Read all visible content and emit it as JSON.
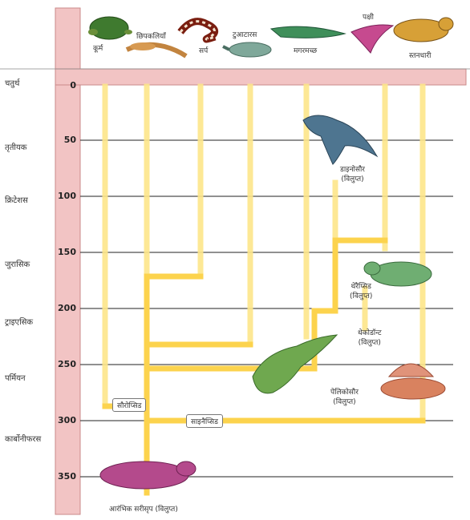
{
  "eras": [
    {
      "id": "quaternary",
      "label": "चतुर्थ",
      "ma": 0
    },
    {
      "id": "tertiary",
      "label": "तृतीयक",
      "ma": 50
    },
    {
      "id": "cretaceous",
      "label": "क्रिटेशस",
      "ma": 100
    },
    {
      "id": "jurassic",
      "label": "जुरासिक",
      "ma": 150
    },
    {
      "id": "triassic",
      "label": "ट्राइएसिक",
      "ma": 200
    },
    {
      "id": "permian",
      "label": "पर्मियन",
      "ma": 250
    },
    {
      "id": "carboniferous",
      "label": "कार्बोनीफरस",
      "ma": 300
    }
  ],
  "ticks": [
    "0",
    "50",
    "100",
    "150",
    "200",
    "250",
    "300",
    "350"
  ],
  "modern_animals": {
    "turtles": "कूर्म",
    "lizards": "छिपकलियाँ",
    "snakes": "सर्प",
    "tuatara": "टुआटारस",
    "crocodiles": "मगरमच्छ",
    "birds": "पक्षी",
    "mammals": "स्तनधारी"
  },
  "extinct_groups": {
    "dinosaurs": {
      "name": "डाइनोसौर",
      "status": "(विलुप्त)"
    },
    "therapsids": {
      "name": "थेरैप्सिड",
      "status": "(विलुप्त)"
    },
    "thecodonts": {
      "name": "थेकोडॉन्ट",
      "status": "(विलुप्त)"
    },
    "pelycosaurs": {
      "name": "पेलिकोसौर",
      "status": "(विलुप्त)"
    },
    "early_reptiles": {
      "name": "आरंभिक  सरीसृप  (विलुप्त)"
    }
  },
  "clades": {
    "sauropsids": "सौरोप्सिड",
    "synapsids": "साइनैप्सिड"
  },
  "colors": {
    "axis_band": "#f2c4c4",
    "axis_border": "#c98a8a",
    "branch": "#fcd34d",
    "branch_main": "#fbbf24",
    "gridline": "#222222"
  }
}
